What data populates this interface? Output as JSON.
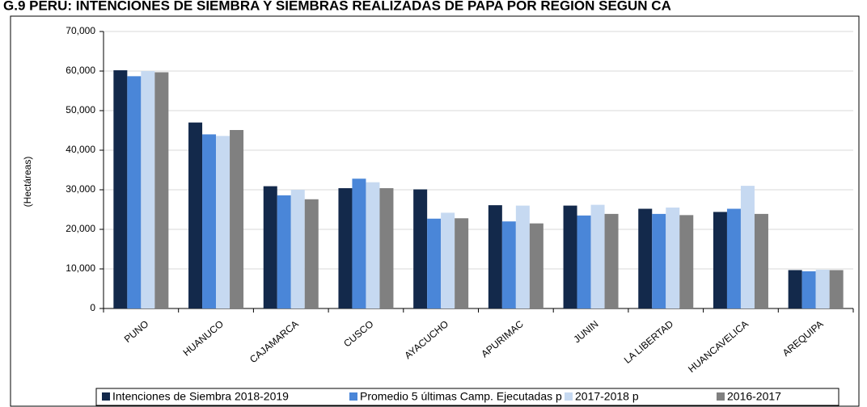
{
  "chart_data": {
    "type": "bar",
    "title": "G.9 PERÚ: INTENCIONES DE SIEMBRA Y SIEMBRAS REALIZADAS DE PAPA POR REGIÓN SEGÚN CA",
    "y_label": "(Hectáreas)",
    "categories": [
      "PUNO",
      "HUANUCO",
      "CAJAMARCA",
      "CUSCO",
      "AYACUCHO",
      "APURIMAC",
      "JUNIN",
      "LA LIBERTAD",
      "HUANCAVELICA",
      "AREQUIPA"
    ],
    "series": [
      {
        "name": "Intenciones de Siembra 2018-2019",
        "color": "#13294b",
        "values": [
          60200,
          47000,
          30900,
          30400,
          30100,
          26100,
          26000,
          25200,
          24400,
          9700
        ]
      },
      {
        "name": "Promedio 5 últimas Camp. Ejecutadas p",
        "color": "#4a86d8",
        "values": [
          58700,
          44000,
          28600,
          32800,
          22700,
          22000,
          23500,
          23900,
          25200,
          9400
        ]
      },
      {
        "name": "2017-2018 p",
        "color": "#c6d9f1",
        "values": [
          60000,
          43600,
          30000,
          31900,
          24200,
          26000,
          26200,
          25500,
          31000,
          9800
        ]
      },
      {
        "name": "2016-2017",
        "color": "#808080",
        "values": [
          59700,
          45100,
          27600,
          30400,
          22800,
          21500,
          23900,
          23600,
          23900,
          9700
        ]
      }
    ],
    "ylim": [
      0,
      70000
    ],
    "yticks": [
      0,
      {
        "value": 10000,
        "label": "10,000"
      },
      {
        "value": 20000,
        "label": "20,000"
      },
      {
        "value": 30000,
        "label": "30,000"
      },
      {
        "value": 40000,
        "label": "40,000"
      },
      {
        "value": 50000,
        "label": "50,000"
      },
      {
        "value": 60000,
        "label": "60,000"
      },
      {
        "value": 70000,
        "label": "70,000"
      }
    ],
    "grid": true
  }
}
